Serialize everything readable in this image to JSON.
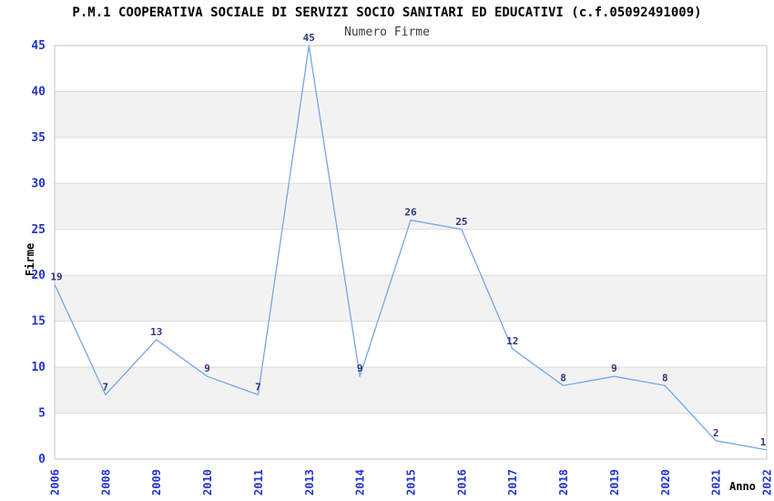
{
  "chart_data": {
    "type": "line",
    "title": "P.M.1 COOPERATIVA SOCIALE DI SERVIZI SOCIO SANITARI ED EDUCATIVI (c.f.05092491009)",
    "subtitle": "Numero Firme",
    "xlabel": "Anno",
    "ylabel": "Firme",
    "categories": [
      "2006",
      "2008",
      "2009",
      "2010",
      "2011",
      "2013",
      "2014",
      "2015",
      "2016",
      "2017",
      "2018",
      "2019",
      "2020",
      "2021",
      "2022"
    ],
    "values": [
      19,
      7,
      13,
      9,
      7,
      45,
      9,
      26,
      25,
      12,
      8,
      9,
      8,
      2,
      1
    ],
    "ylim": [
      0,
      45
    ],
    "ytick_step": 5,
    "yticks": [
      0,
      5,
      10,
      15,
      20,
      25,
      30,
      35,
      40,
      45
    ],
    "grid": true,
    "legend": "none",
    "band_rows": "alternating light-gray horizontal bands of 5 units (5-10, 15-20, 25-30, 35-40)",
    "x_tick_rotation": -90,
    "colors": {
      "line": "#74a7e8",
      "tick_label": "#2233cc",
      "data_label": "#34347c",
      "band": "#f2f2f2",
      "grid": "#dcdcdc",
      "border": "#c6c6c6",
      "title": "#000000",
      "subtitle": "#3c3c3c",
      "axis_title": "#000000",
      "background": "#ffffff"
    }
  }
}
